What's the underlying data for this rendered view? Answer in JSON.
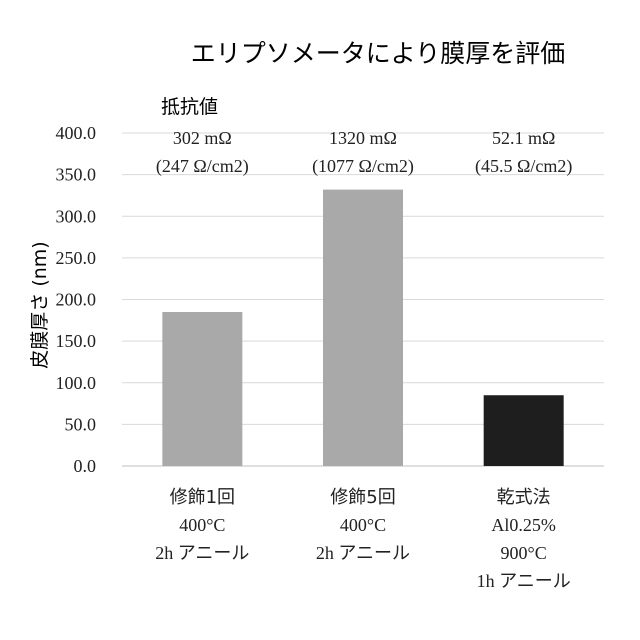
{
  "chart_data": {
    "type": "bar",
    "title": "エリプソメータにより膜厚を評価",
    "ylabel": "皮膜厚さ (nm)",
    "xlabel": "",
    "ylim": [
      0,
      400
    ],
    "y_ticks": [
      "0.0",
      "50.0",
      "100.0",
      "150.0",
      "200.0",
      "250.0",
      "300.0",
      "350.0",
      "400.0"
    ],
    "grid": true,
    "categories": [
      [
        "修飾1回",
        "400°C",
        "2h アニール"
      ],
      [
        "修飾5回",
        "400°C",
        "2h アニール"
      ],
      [
        "乾式法",
        "Al0.25%",
        "900°C",
        "1h アニール"
      ]
    ],
    "values": [
      185,
      332,
      85
    ],
    "bar_colors": [
      "#a9a9a9",
      "#a9a9a9",
      "#1e1e1e"
    ],
    "resistance_header": "抵抗値",
    "resistance_labels": [
      [
        "302 mΩ",
        "(247 Ω/cm2)"
      ],
      [
        "1320 mΩ",
        "(1077 Ω/cm2)"
      ],
      [
        "52.1 mΩ",
        "(45.5 Ω/cm2)"
      ]
    ]
  },
  "colors": {
    "grid": "#d9d9d9",
    "axis": "#bfbfbf",
    "text": "#222222"
  }
}
